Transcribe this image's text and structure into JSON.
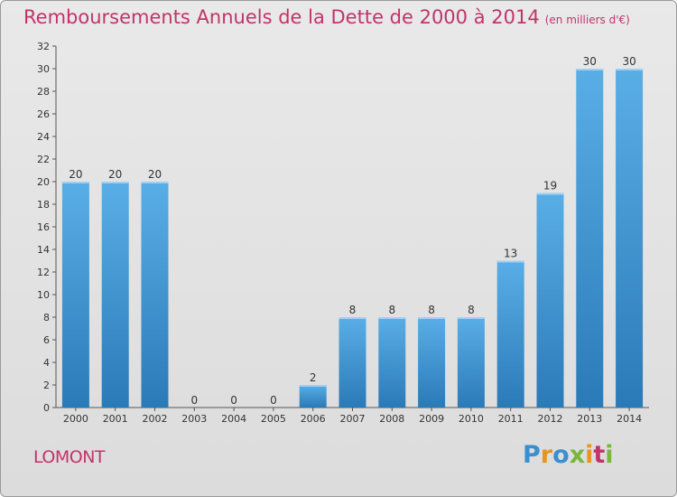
{
  "header": {
    "title": "Remboursements Annuels de la Dette de 2000 à 2014",
    "subtitle": "(en milliers d'€)"
  },
  "footer": {
    "commune": "LOMONT",
    "logo_text": "Proxiti"
  },
  "colors": {
    "title": "#c2336b",
    "bar_top": "#5aaee6",
    "bar_bottom": "#2a7ab8",
    "logo_letters": [
      "#3a8fd0",
      "#e8951f",
      "#3a8fd0",
      "#79b83a",
      "#e8951f",
      "#c2336b",
      "#79b83a"
    ]
  },
  "chart_data": {
    "type": "bar",
    "categories": [
      "2000",
      "2001",
      "2002",
      "2003",
      "2004",
      "2005",
      "2006",
      "2007",
      "2008",
      "2009",
      "2010",
      "2011",
      "2012",
      "2013",
      "2014"
    ],
    "values": [
      20,
      20,
      20,
      0,
      0,
      0,
      2,
      8,
      8,
      8,
      8,
      13,
      19,
      30,
      30
    ],
    "data_labels": [
      "20",
      "20",
      "20",
      "0",
      "0",
      "0",
      "2",
      "8",
      "8",
      "8",
      "8",
      "13",
      "19",
      "30",
      "30"
    ],
    "title": "Remboursements Annuels de la Dette de 2000 à 2014",
    "xlabel": "",
    "ylabel": "",
    "ylim": [
      0,
      32
    ],
    "yticks": [
      0,
      2,
      4,
      6,
      8,
      10,
      12,
      14,
      16,
      18,
      20,
      22,
      24,
      26,
      28,
      30,
      32
    ],
    "grid": false,
    "legend": "none"
  }
}
